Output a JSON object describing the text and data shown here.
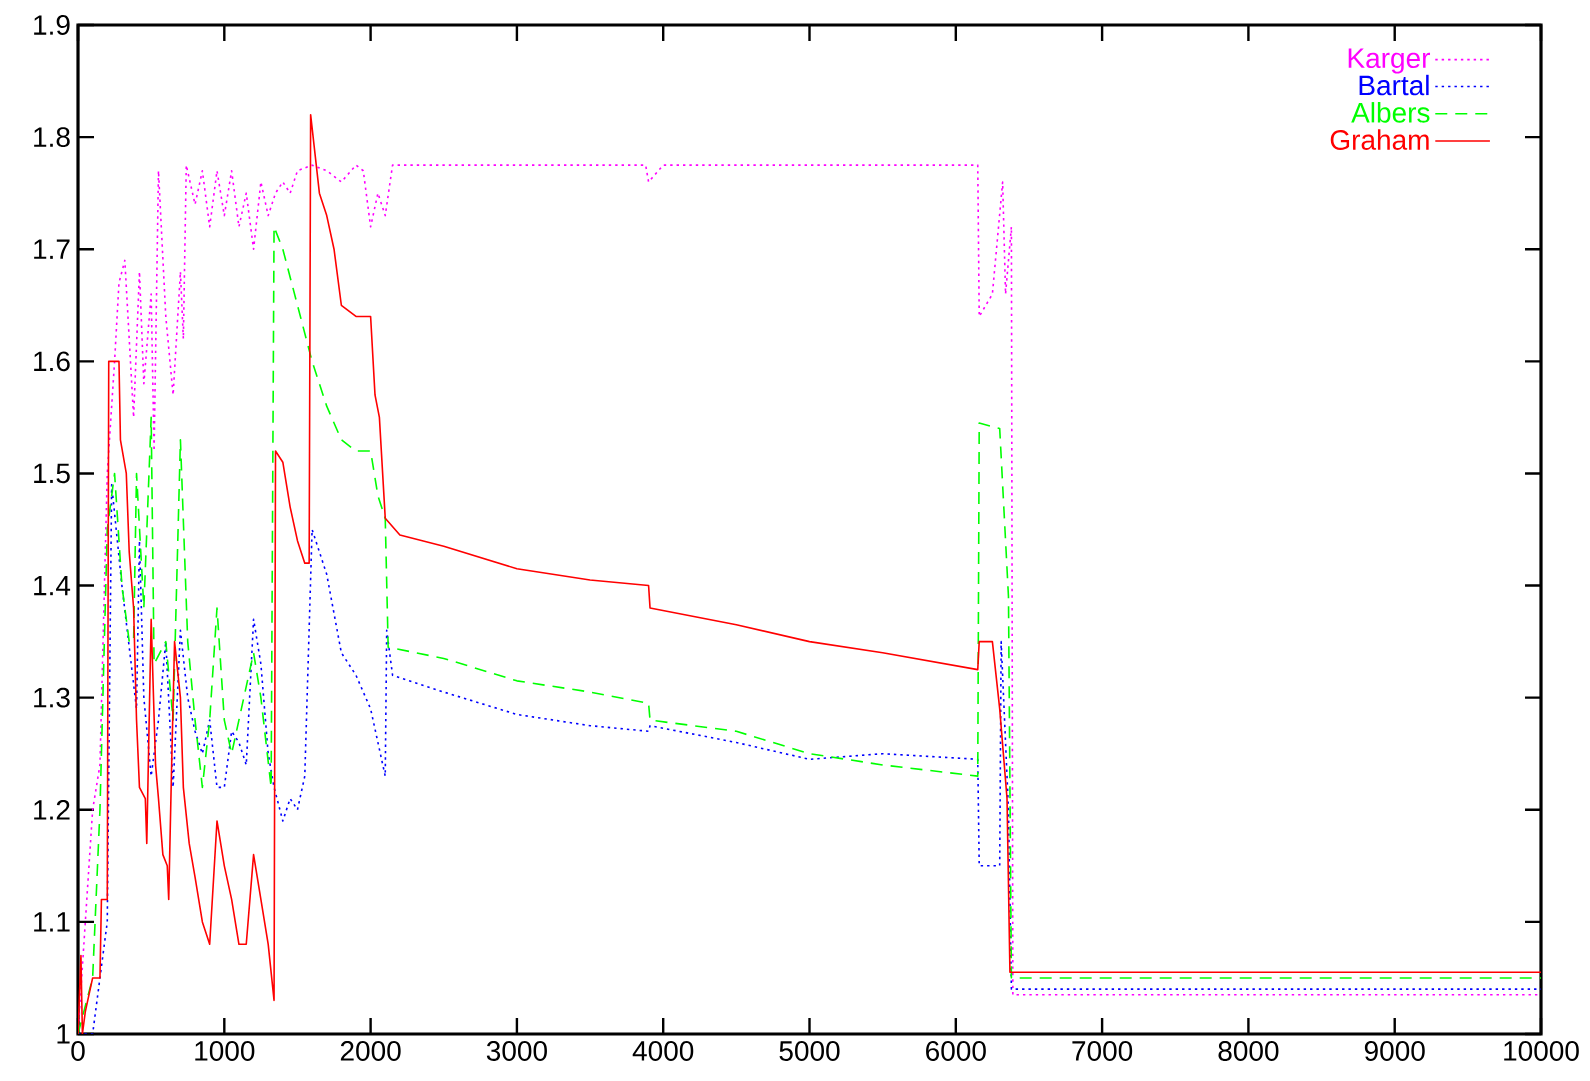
{
  "chart_data": {
    "type": "line",
    "xlim": [
      0,
      10000
    ],
    "ylim": [
      1,
      1.9
    ],
    "xticks": [
      0,
      1000,
      2000,
      3000,
      4000,
      5000,
      6000,
      7000,
      8000,
      9000,
      10000
    ],
    "yticks": [
      1,
      1.1,
      1.2,
      1.3,
      1.4,
      1.5,
      1.6,
      1.7,
      1.8,
      1.9
    ],
    "grid": false,
    "legend": "top right",
    "marker": "none",
    "series": [
      {
        "name": "Karger",
        "color": "#ff00ff",
        "line_style": "dotted",
        "x": [
          0,
          100,
          150,
          200,
          250,
          280,
          320,
          350,
          380,
          420,
          450,
          500,
          520,
          550,
          600,
          650,
          700,
          720,
          740,
          800,
          850,
          900,
          950,
          1000,
          1050,
          1100,
          1150,
          1200,
          1250,
          1300,
          1350,
          1400,
          1450,
          1500,
          1600,
          1700,
          1800,
          1900,
          1950,
          2000,
          2050,
          2100,
          2150,
          3880,
          3900,
          4000,
          6150,
          6160,
          6250,
          6320,
          6340,
          6380,
          6390,
          10000
        ],
        "values": [
          1.0,
          1.2,
          1.24,
          1.5,
          1.6,
          1.67,
          1.69,
          1.62,
          1.55,
          1.68,
          1.58,
          1.66,
          1.52,
          1.77,
          1.64,
          1.57,
          1.68,
          1.62,
          1.775,
          1.74,
          1.77,
          1.72,
          1.77,
          1.73,
          1.77,
          1.72,
          1.75,
          1.7,
          1.76,
          1.73,
          1.75,
          1.76,
          1.75,
          1.77,
          1.775,
          1.77,
          1.76,
          1.775,
          1.77,
          1.72,
          1.75,
          1.73,
          1.775,
          1.775,
          1.76,
          1.775,
          1.775,
          1.64,
          1.66,
          1.76,
          1.66,
          1.72,
          1.035,
          1.035
        ]
      },
      {
        "name": "Bartal",
        "color": "#0000ff",
        "line_style": "dotted",
        "x": [
          0,
          100,
          150,
          200,
          230,
          300,
          400,
          420,
          450,
          500,
          550,
          600,
          650,
          700,
          750,
          800,
          850,
          900,
          950,
          1000,
          1050,
          1100,
          1150,
          1200,
          1250,
          1300,
          1340,
          1400,
          1450,
          1500,
          1550,
          1600,
          1700,
          1800,
          1900,
          2000,
          2050,
          2100,
          2110,
          2150,
          2500,
          3000,
          3500,
          3900,
          3910,
          4500,
          5000,
          5500,
          6150,
          6160,
          6300,
          6310,
          6360,
          6380,
          10000
        ],
        "values": [
          1.0,
          1.0,
          1.05,
          1.1,
          1.49,
          1.4,
          1.29,
          1.44,
          1.3,
          1.23,
          1.28,
          1.35,
          1.22,
          1.36,
          1.3,
          1.27,
          1.25,
          1.28,
          1.22,
          1.22,
          1.27,
          1.26,
          1.24,
          1.37,
          1.33,
          1.25,
          1.22,
          1.19,
          1.21,
          1.2,
          1.23,
          1.45,
          1.41,
          1.34,
          1.32,
          1.29,
          1.26,
          1.23,
          1.36,
          1.32,
          1.305,
          1.285,
          1.275,
          1.27,
          1.275,
          1.26,
          1.245,
          1.25,
          1.245,
          1.15,
          1.15,
          1.35,
          1.2,
          1.04,
          1.04
        ]
      },
      {
        "name": "Albers",
        "color": "#00ff00",
        "line_style": "dashed",
        "x": [
          0,
          100,
          150,
          200,
          250,
          300,
          350,
          380,
          400,
          450,
          500,
          520,
          600,
          650,
          700,
          750,
          800,
          850,
          900,
          950,
          1000,
          1050,
          1100,
          1200,
          1250,
          1320,
          1340,
          1400,
          1500,
          1600,
          1700,
          1800,
          1900,
          2000,
          2050,
          2100,
          2120,
          2500,
          3000,
          3500,
          3900,
          3910,
          4500,
          5000,
          5500,
          6150,
          6160,
          6300,
          6360,
          6380,
          10000
        ],
        "values": [
          1.0,
          1.05,
          1.2,
          1.45,
          1.5,
          1.4,
          1.35,
          1.35,
          1.5,
          1.38,
          1.55,
          1.33,
          1.35,
          1.28,
          1.53,
          1.35,
          1.28,
          1.22,
          1.28,
          1.38,
          1.28,
          1.25,
          1.28,
          1.34,
          1.3,
          1.22,
          1.72,
          1.7,
          1.65,
          1.6,
          1.56,
          1.53,
          1.52,
          1.52,
          1.48,
          1.46,
          1.345,
          1.335,
          1.315,
          1.305,
          1.295,
          1.28,
          1.27,
          1.25,
          1.24,
          1.23,
          1.545,
          1.54,
          1.39,
          1.05,
          1.05
        ]
      },
      {
        "name": "Graham",
        "color": "#ff0000",
        "line_style": "solid",
        "x": [
          0,
          20,
          30,
          50,
          100,
          150,
          160,
          200,
          210,
          280,
          290,
          330,
          350,
          380,
          400,
          420,
          460,
          470,
          500,
          530,
          550,
          580,
          610,
          620,
          640,
          660,
          700,
          720,
          760,
          800,
          850,
          900,
          950,
          1000,
          1050,
          1100,
          1150,
          1200,
          1250,
          1300,
          1340,
          1350,
          1400,
          1450,
          1500,
          1550,
          1580,
          1590,
          1650,
          1700,
          1750,
          1800,
          1900,
          2000,
          2030,
          2060,
          2100,
          2200,
          2500,
          3000,
          3500,
          3900,
          3910,
          4500,
          5000,
          5500,
          6150,
          6160,
          6250,
          6300,
          6350,
          6370,
          10000
        ],
        "values": [
          1.0,
          1.07,
          1.0,
          1.02,
          1.05,
          1.05,
          1.12,
          1.12,
          1.6,
          1.6,
          1.53,
          1.5,
          1.43,
          1.38,
          1.28,
          1.22,
          1.21,
          1.17,
          1.37,
          1.24,
          1.21,
          1.16,
          1.15,
          1.12,
          1.24,
          1.35,
          1.3,
          1.22,
          1.17,
          1.14,
          1.1,
          1.08,
          1.19,
          1.15,
          1.12,
          1.08,
          1.08,
          1.16,
          1.12,
          1.08,
          1.03,
          1.52,
          1.51,
          1.47,
          1.44,
          1.42,
          1.42,
          1.82,
          1.75,
          1.73,
          1.7,
          1.65,
          1.64,
          1.64,
          1.57,
          1.55,
          1.46,
          1.445,
          1.435,
          1.415,
          1.405,
          1.4,
          1.38,
          1.365,
          1.35,
          1.34,
          1.325,
          1.35,
          1.35,
          1.29,
          1.21,
          1.055,
          1.055
        ]
      }
    ]
  }
}
